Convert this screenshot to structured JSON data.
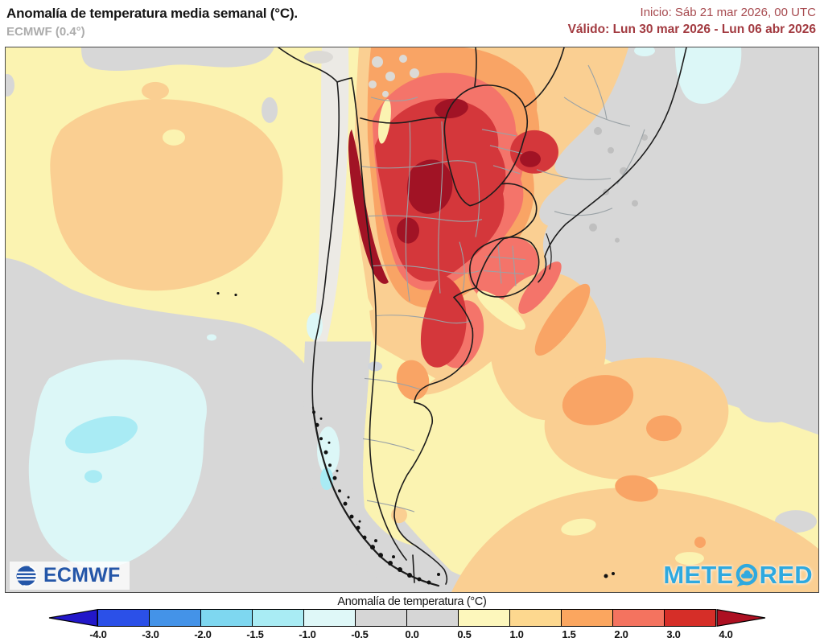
{
  "header": {
    "title": "Anomalía de temperatura media semanal (°C).",
    "model": "ECMWF (0.4°)",
    "init": "Inicio: Sáb 21 mar 2026, 00 UTC",
    "valid": "Válido: Lun 30 mar 2026 - Lun 06 abr 2026",
    "init_color": "#A74A4F",
    "valid_color": "#A23A40"
  },
  "map": {
    "ecmwf_label": "ECMWF",
    "ecmwf_color": "#2456A8",
    "meteored": {
      "prefix": "METE",
      "suffix": "RED",
      "full": "METEORED",
      "color": "#2FA9DF"
    }
  },
  "legend": {
    "title": "Anomalía de temperatura (°C)",
    "ticks": [
      "-4.0",
      "-3.0",
      "-2.0",
      "-1.5",
      "-1.0",
      "-0.5",
      "0.0",
      "0.5",
      "1.0",
      "1.5",
      "2.0",
      "3.0",
      "4.0"
    ],
    "segments": [
      "#2B50E8",
      "#4493E8",
      "#7ED7F0",
      "#A9ECF4",
      "#DFF8F8",
      "#D6D6D6",
      "#D6D6D6",
      "#FDF7BC",
      "#FDD88F",
      "#FBA65F",
      "#F4735F",
      "#D62E28"
    ],
    "arrow_left_color": "#2217C9",
    "arrow_right_color": "#AD1022",
    "palette_meaning": {
      "-4.0_-3.0": "#2B50E8",
      "-3.0_-2.0": "#4493E8",
      "-2.0_-1.5": "#7ED7F0",
      "-1.5_-1.0": "#A9ECF4",
      "-1.0_-0.5": "#DFF8F8",
      "-0.5_0.0": "#D6D6D6",
      "0.0_0.5": "#D6D6D6",
      "0.5_1.0": "#FDF7BC",
      "1.0_1.5": "#FDD88F",
      "1.5_2.0": "#FBA65F",
      "2.0_3.0": "#F4735F",
      "3.0_4.0": "#D62E28"
    }
  }
}
